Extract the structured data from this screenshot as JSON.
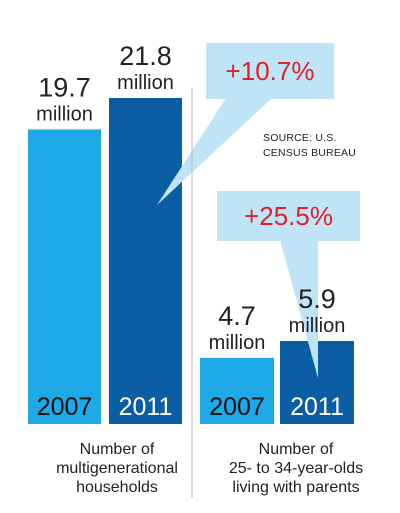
{
  "chart_data": [
    {
      "type": "bar",
      "categories": [
        "2007",
        "2011"
      ],
      "values": [
        19.7,
        21.8
      ],
      "value_labels": [
        "19.7",
        "21.8"
      ],
      "unit": "million",
      "change_label": "+10.7%",
      "caption": [
        "Number of",
        "multigenerational",
        "households"
      ]
    },
    {
      "type": "bar",
      "categories": [
        "2007",
        "2011"
      ],
      "values": [
        4.7,
        5.9
      ],
      "value_labels": [
        "4.7",
        "5.9"
      ],
      "unit": "million",
      "change_label": "+25.5%",
      "caption": [
        "Number of",
        "25- to 34-year-olds",
        "living with parents"
      ]
    }
  ],
  "source": [
    "SOURCE: U.S.",
    "CENSUS BUREAU"
  ],
  "colors": {
    "bar_2007": "#1fa8e6",
    "bar_2011": "#0b5ea3",
    "callout": "#bfe4f6",
    "change_text": "#e0202a",
    "divider": "#bbbbbb"
  }
}
